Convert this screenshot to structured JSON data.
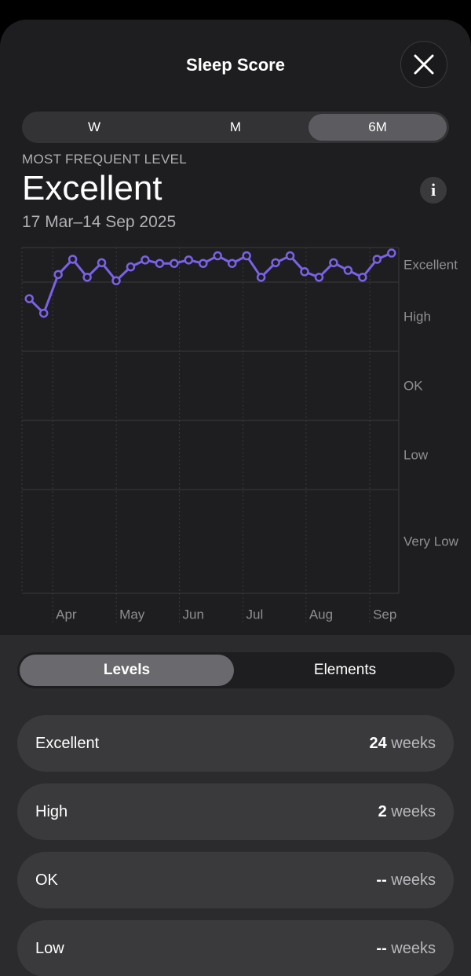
{
  "header": {
    "title": "Sleep Score"
  },
  "periods": [
    "W",
    "M",
    "6M"
  ],
  "summary": {
    "eyebrow": "MOST FREQUENT LEVEL",
    "level": "Excellent",
    "range": "17 Mar–14 Sep 2025",
    "info": "i"
  },
  "chart_data": {
    "type": "line",
    "x": [
      0,
      1,
      2,
      3,
      4,
      5,
      6,
      7,
      8,
      9,
      10,
      11,
      12,
      13,
      14,
      15,
      16,
      17,
      18,
      19,
      20,
      21,
      22,
      23,
      24,
      25
    ],
    "series": [
      {
        "name": "Sleep Score",
        "color": "#7b61e8",
        "values": [
          87.6,
          85.5,
          91.1,
          93.3,
          90.7,
          92.8,
          90.2,
          92.2,
          93.2,
          92.7,
          92.7,
          93.2,
          92.7,
          93.8,
          92.7,
          93.8,
          90.7,
          92.8,
          93.8,
          91.5,
          90.7,
          92.8,
          91.7,
          90.7,
          93.3,
          94.2
        ]
      }
    ],
    "xlim": [
      -0.5,
      25.5
    ],
    "xticks": [
      {
        "value": 1.62,
        "label": "Apr"
      },
      {
        "value": 6.01,
        "label": "May"
      },
      {
        "value": 10.36,
        "label": "Jun"
      },
      {
        "value": 14.75,
        "label": "Jul"
      },
      {
        "value": 19.1,
        "label": "Aug"
      },
      {
        "value": 23.5,
        "label": "Sep"
      }
    ],
    "ylim": [
      45,
      95
    ],
    "yticks": [
      90,
      80,
      70,
      60
    ],
    "y_band_labels": [
      "Excellent",
      "High",
      "OK",
      "Low",
      "Very Low"
    ]
  },
  "tabs": [
    "Levels",
    "Elements"
  ],
  "rows": [
    {
      "label": "Excellent",
      "count": 24,
      "unit": "weeks"
    },
    {
      "label": "High",
      "count": 2,
      "unit": "weeks"
    },
    {
      "label": "OK",
      "count": "--",
      "unit": "weeks"
    },
    {
      "label": "Low",
      "count": "--",
      "unit": "weeks"
    }
  ]
}
